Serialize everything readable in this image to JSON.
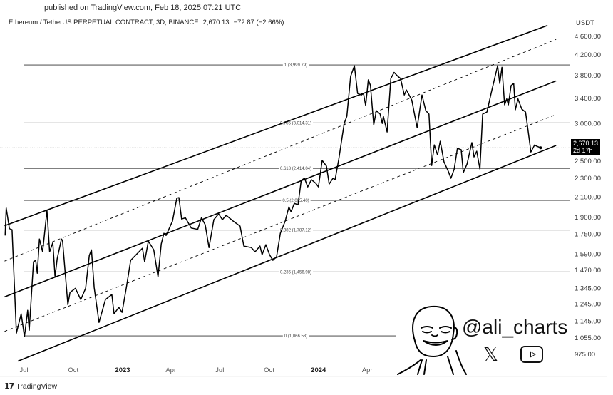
{
  "header": {
    "published": "published on TradingView.com, Feb 18, 2025 07:21 UTC",
    "symbol": "Ethereum / TetherUS PERPETUAL CONTRACT, 3D, BINANCE",
    "last": "2,670.13",
    "change": "−72.87 (−2.66%)"
  },
  "footer": {
    "logo": "17",
    "brand": "TradingView"
  },
  "watermark": {
    "handle": "@ali_charts",
    "x_icon": "x-logo-icon",
    "youtube_icon": "youtube-icon"
  },
  "chart_data": {
    "type": "line",
    "currency": "USDT",
    "y_scale": "log",
    "ylim": [
      930,
      5000
    ],
    "y_ticks": [
      4600,
      4200,
      3800,
      3400,
      3000,
      2500,
      2300,
      2100,
      1900,
      1750,
      1590,
      1470,
      1345,
      1245,
      1145,
      1055,
      975
    ],
    "y_tick_labels": [
      "4,600.00",
      "4,200.00",
      "3,800.00",
      "3,400.00",
      "3,000.00",
      "2,500.00",
      "2,300.00",
      "2,100.00",
      "1,900.00",
      "1,750.00",
      "1,590.00",
      "1,470.00",
      "1,345.00",
      "1,245.00",
      "1,145.00",
      "1,055.00",
      "975.00"
    ],
    "x_ticks": [
      {
        "date": "2022-07-01",
        "label": "Jul",
        "bold": false
      },
      {
        "date": "2022-10-01",
        "label": "Oct",
        "bold": false
      },
      {
        "date": "2023-01-01",
        "label": "2023",
        "bold": true
      },
      {
        "date": "2023-04-01",
        "label": "Apr",
        "bold": false
      },
      {
        "date": "2023-07-01",
        "label": "Jul",
        "bold": false
      },
      {
        "date": "2023-10-01",
        "label": "Oct",
        "bold": false
      },
      {
        "date": "2024-01-01",
        "label": "2024",
        "bold": true
      },
      {
        "date": "2024-04-01",
        "label": "Apr",
        "bold": false
      }
    ],
    "last_price": {
      "value": 2670.13,
      "label": "2,670.13",
      "countdown": "2d 17h"
    },
    "fib_levels": [
      {
        "ratio": 1,
        "price": 3999.79,
        "label": "1 (3,999.79)"
      },
      {
        "ratio": 0.786,
        "price": 3014.31,
        "label": "0.786 (3,014.31)"
      },
      {
        "ratio": 0.618,
        "price": 2414.04,
        "label": "0.618 (2,414.04)"
      },
      {
        "ratio": 0.5,
        "price": 2065.4,
        "label": "0.5 (2,065.40)"
      },
      {
        "ratio": 0.382,
        "price": 1787.12,
        "label": "0.382 (1,787.12)"
      },
      {
        "ratio": 0.236,
        "price": 1456.98,
        "label": "0.236 (1,456.98)"
      },
      {
        "ratio": 0,
        "price": 1066.53,
        "label": "0 (1,066.53)"
      }
    ],
    "channel_lines": [
      {
        "style": "solid",
        "from": [
          "2022-05-26",
          1825
        ],
        "to": [
          "2025-03-03",
          4850
        ]
      },
      {
        "style": "dashed",
        "from": [
          "2022-05-26",
          1536
        ],
        "to": [
          "2025-03-19",
          4530
        ]
      },
      {
        "style": "solid",
        "from": [
          "2022-05-26",
          1290
        ],
        "to": [
          "2025-03-19",
          3700
        ]
      },
      {
        "style": "dashed",
        "from": [
          "2022-05-26",
          1090
        ],
        "to": [
          "2025-03-19",
          3140
        ]
      },
      {
        "style": "solid",
        "from": [
          "2022-06-20",
          943
        ],
        "to": [
          "2025-03-19",
          2700
        ]
      }
    ],
    "series": [
      {
        "values": [
          [
            "2022-05-27",
            1740
          ],
          [
            "2022-05-29",
            1990
          ],
          [
            "2022-06-04",
            1800
          ],
          [
            "2022-06-09",
            1790
          ],
          [
            "2022-06-17",
            1081
          ],
          [
            "2022-06-26",
            1188
          ],
          [
            "2022-07-02",
            1063
          ],
          [
            "2022-07-08",
            1208
          ],
          [
            "2022-07-11",
            1096
          ],
          [
            "2022-07-19",
            1531
          ],
          [
            "2022-07-23",
            1542
          ],
          [
            "2022-07-26",
            1448
          ],
          [
            "2022-07-30",
            1711
          ],
          [
            "2022-08-05",
            1607
          ],
          [
            "2022-08-13",
            1966
          ],
          [
            "2022-08-18",
            1607
          ],
          [
            "2022-08-24",
            1681
          ],
          [
            "2022-08-28",
            1423
          ],
          [
            "2022-09-01",
            1553
          ],
          [
            "2022-09-09",
            1711
          ],
          [
            "2022-09-11",
            1699
          ],
          [
            "2022-09-21",
            1242
          ],
          [
            "2022-09-25",
            1318
          ],
          [
            "2022-10-05",
            1345
          ],
          [
            "2022-10-15",
            1273
          ],
          [
            "2022-10-24",
            1345
          ],
          [
            "2022-10-31",
            1580
          ],
          [
            "2022-11-04",
            1623
          ],
          [
            "2022-11-09",
            1351
          ],
          [
            "2022-11-18",
            1139
          ],
          [
            "2022-11-30",
            1273
          ],
          [
            "2022-12-12",
            1305
          ],
          [
            "2022-12-16",
            1188
          ],
          [
            "2022-12-25",
            1225
          ],
          [
            "2022-12-31",
            1196
          ],
          [
            "2023-01-08",
            1351
          ],
          [
            "2023-01-16",
            1542
          ],
          [
            "2023-01-25",
            1580
          ],
          [
            "2023-02-07",
            1635
          ],
          [
            "2023-02-11",
            1531
          ],
          [
            "2023-02-18",
            1693
          ],
          [
            "2023-02-28",
            1623
          ],
          [
            "2023-03-08",
            1423
          ],
          [
            "2023-03-14",
            1670
          ],
          [
            "2023-03-19",
            1759
          ],
          [
            "2023-03-23",
            1741
          ],
          [
            "2023-04-04",
            1867
          ],
          [
            "2023-04-12",
            2087
          ],
          [
            "2023-04-16",
            2094
          ],
          [
            "2023-04-21",
            1886
          ],
          [
            "2023-04-28",
            1897
          ],
          [
            "2023-05-09",
            1805
          ],
          [
            "2023-05-21",
            1793
          ],
          [
            "2023-05-28",
            1897
          ],
          [
            "2023-06-04",
            1834
          ],
          [
            "2023-06-11",
            1641
          ],
          [
            "2023-06-20",
            1880
          ],
          [
            "2023-06-29",
            1933
          ],
          [
            "2023-07-06",
            1880
          ],
          [
            "2023-07-13",
            1920
          ],
          [
            "2023-07-26",
            1867
          ],
          [
            "2023-08-08",
            1822
          ],
          [
            "2023-08-15",
            1653
          ],
          [
            "2023-08-29",
            1641
          ],
          [
            "2023-09-05",
            1607
          ],
          [
            "2023-09-14",
            1653
          ],
          [
            "2023-09-18",
            1585
          ],
          [
            "2023-09-25",
            1664
          ],
          [
            "2023-10-02",
            1585
          ],
          [
            "2023-10-08",
            1542
          ],
          [
            "2023-10-15",
            1569
          ],
          [
            "2023-10-22",
            1759
          ],
          [
            "2023-10-31",
            1867
          ],
          [
            "2023-11-07",
            2000
          ],
          [
            "2023-11-11",
            1953
          ],
          [
            "2023-11-17",
            2036
          ],
          [
            "2023-11-24",
            2022
          ],
          [
            "2023-11-30",
            2278
          ],
          [
            "2023-12-06",
            2301
          ],
          [
            "2023-12-12",
            2206
          ],
          [
            "2023-12-19",
            2285
          ],
          [
            "2023-12-27",
            2245
          ],
          [
            "2024-01-01",
            2206
          ],
          [
            "2024-01-08",
            2510
          ],
          [
            "2024-01-16",
            2442
          ],
          [
            "2024-01-21",
            2237
          ],
          [
            "2024-01-28",
            2301
          ],
          [
            "2024-02-01",
            2285
          ],
          [
            "2024-02-08",
            2527
          ],
          [
            "2024-02-18",
            3007
          ],
          [
            "2024-02-23",
            3113
          ],
          [
            "2024-03-01",
            3784
          ],
          [
            "2024-03-08",
            3982
          ],
          [
            "2024-03-14",
            3479
          ],
          [
            "2024-03-21",
            3454
          ],
          [
            "2024-03-25",
            3479
          ],
          [
            "2024-03-29",
            3281
          ],
          [
            "2024-04-03",
            3719
          ],
          [
            "2024-04-07",
            3620
          ],
          [
            "2024-04-13",
            2987
          ],
          [
            "2024-04-18",
            3200
          ],
          [
            "2024-04-25",
            3147
          ],
          [
            "2024-04-29",
            3007
          ],
          [
            "2024-05-01",
            3113
          ],
          [
            "2024-05-08",
            2884
          ],
          [
            "2024-05-15",
            3745
          ],
          [
            "2024-05-21",
            3857
          ],
          [
            "2024-05-28",
            3784
          ],
          [
            "2024-06-02",
            3745
          ],
          [
            "2024-06-09",
            3454
          ],
          [
            "2024-06-13",
            3540
          ],
          [
            "2024-06-23",
            3370
          ],
          [
            "2024-07-03",
            2946
          ],
          [
            "2024-07-12",
            3454
          ],
          [
            "2024-07-19",
            3202
          ],
          [
            "2024-07-25",
            3147
          ],
          [
            "2024-07-30",
            2449
          ],
          [
            "2024-08-04",
            2708
          ],
          [
            "2024-08-10",
            2580
          ],
          [
            "2024-08-15",
            2756
          ],
          [
            "2024-08-22",
            2492
          ],
          [
            "2024-08-30",
            2381
          ],
          [
            "2024-09-04",
            2301
          ],
          [
            "2024-09-10",
            2407
          ],
          [
            "2024-09-16",
            2663
          ],
          [
            "2024-09-23",
            2645
          ],
          [
            "2024-09-27",
            2365
          ],
          [
            "2024-10-04",
            2466
          ],
          [
            "2024-10-13",
            2738
          ],
          [
            "2024-10-17",
            2553
          ],
          [
            "2024-10-22",
            2625
          ],
          [
            "2024-10-28",
            2407
          ],
          [
            "2024-11-02",
            3147
          ],
          [
            "2024-11-10",
            3179
          ],
          [
            "2024-11-19",
            3529
          ],
          [
            "2024-11-30",
            3982
          ],
          [
            "2024-12-04",
            3654
          ],
          [
            "2024-12-08",
            3953
          ],
          [
            "2024-12-13",
            3292
          ],
          [
            "2024-12-17",
            3389
          ],
          [
            "2024-12-20",
            3292
          ],
          [
            "2024-12-25",
            3617
          ],
          [
            "2024-12-30",
            3654
          ],
          [
            "2025-01-02",
            3213
          ],
          [
            "2025-01-07",
            3389
          ],
          [
            "2025-01-14",
            3224
          ],
          [
            "2025-01-21",
            3179
          ],
          [
            "2025-01-25",
            2946
          ],
          [
            "2025-01-31",
            2615
          ],
          [
            "2025-02-07",
            2708
          ],
          [
            "2025-02-11",
            2690
          ],
          [
            "2025-02-18",
            2670.13
          ]
        ]
      }
    ]
  }
}
